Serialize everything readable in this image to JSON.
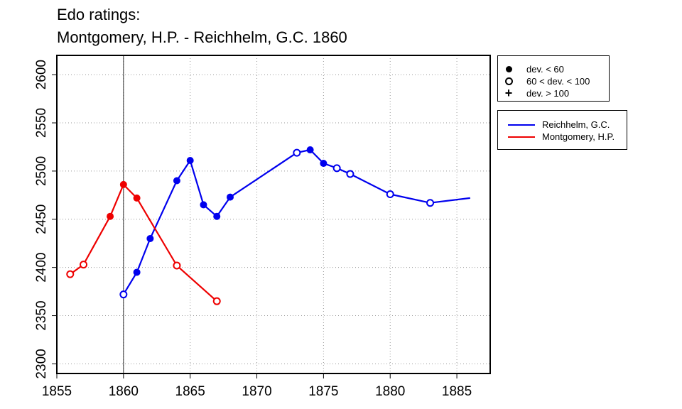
{
  "chart_data": {
    "type": "line",
    "title": "Edo ratings:",
    "subtitle": "Montgomery, H.P. - Reichhelm, G.C. 1860",
    "xlabel": "",
    "ylabel": "",
    "xlim": [
      1855,
      1887.5
    ],
    "ylim": [
      2290,
      2620
    ],
    "x_ticks": [
      1855,
      1860,
      1865,
      1870,
      1875,
      1880,
      1885
    ],
    "y_ticks": [
      2300,
      2350,
      2400,
      2450,
      2500,
      2550,
      2600
    ],
    "grid": true,
    "vertical_marker_x": 1860,
    "legend_position": "outside-right",
    "deviation_legend": [
      {
        "symbol": "filled-circle",
        "label": "dev. < 60"
      },
      {
        "symbol": "open-circle",
        "label": "60 < dev. < 100"
      },
      {
        "symbol": "plus",
        "label": "dev. > 100"
      }
    ],
    "series": [
      {
        "name": "Reichhelm, G.C.",
        "color": "#0000ee",
        "points": [
          {
            "x": 1860,
            "y": 2372,
            "marker": "open"
          },
          {
            "x": 1861,
            "y": 2395,
            "marker": "filled"
          },
          {
            "x": 1862,
            "y": 2430,
            "marker": "filled"
          },
          {
            "x": 1864,
            "y": 2490,
            "marker": "filled"
          },
          {
            "x": 1865,
            "y": 2511,
            "marker": "filled"
          },
          {
            "x": 1866,
            "y": 2465,
            "marker": "filled"
          },
          {
            "x": 1867,
            "y": 2453,
            "marker": "filled"
          },
          {
            "x": 1868,
            "y": 2473,
            "marker": "filled"
          },
          {
            "x": 1873,
            "y": 2519,
            "marker": "open"
          },
          {
            "x": 1874,
            "y": 2522,
            "marker": "filled"
          },
          {
            "x": 1875,
            "y": 2508,
            "marker": "filled"
          },
          {
            "x": 1876,
            "y": 2503,
            "marker": "open"
          },
          {
            "x": 1877,
            "y": 2497,
            "marker": "open"
          },
          {
            "x": 1880,
            "y": 2476,
            "marker": "open"
          },
          {
            "x": 1883,
            "y": 2467,
            "marker": "open"
          },
          {
            "x": 1886,
            "y": 2472,
            "marker": "none"
          }
        ]
      },
      {
        "name": "Montgomery, H.P.",
        "color": "#ee0000",
        "points": [
          {
            "x": 1856,
            "y": 2393,
            "marker": "open"
          },
          {
            "x": 1857,
            "y": 2403,
            "marker": "open"
          },
          {
            "x": 1859,
            "y": 2453,
            "marker": "filled"
          },
          {
            "x": 1860,
            "y": 2486,
            "marker": "filled"
          },
          {
            "x": 1861,
            "y": 2472,
            "marker": "filled"
          },
          {
            "x": 1864,
            "y": 2402,
            "marker": "open"
          },
          {
            "x": 1867,
            "y": 2365,
            "marker": "open"
          }
        ]
      }
    ]
  }
}
